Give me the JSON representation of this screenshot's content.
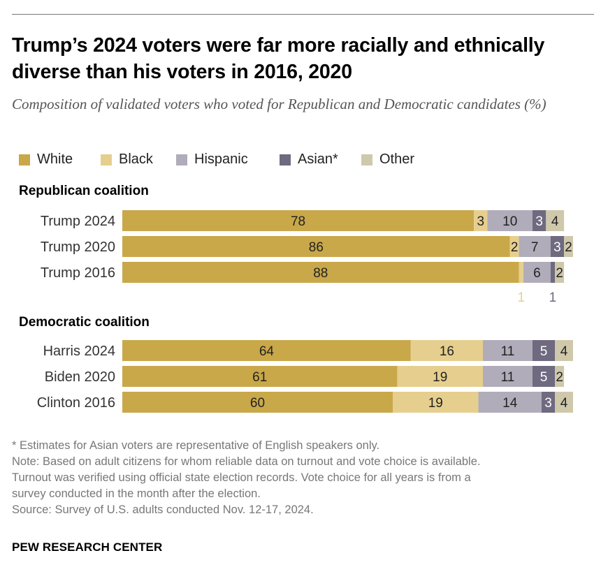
{
  "title": "Trump’s 2024 voters were far more racially and ethnically diverse than his voters in 2016, 2020",
  "subtitle": "Composition of validated voters who voted for Republican and Democratic candidates (%)",
  "colors": {
    "White": "#C9A84A",
    "Black": "#E6CF8E",
    "Hispanic": "#B0ACBA",
    "Asian*": "#6F6A80",
    "Other": "#CFC8AB"
  },
  "legend": [
    "White",
    "Black",
    "Hispanic",
    "Asian*",
    "Other"
  ],
  "chart_data": {
    "type": "bar",
    "orientation": "horizontal",
    "stacked": true,
    "unit": "%",
    "categories_stack": [
      "White",
      "Black",
      "Hispanic",
      "Asian*",
      "Other"
    ],
    "groups": [
      {
        "name": "Republican coalition",
        "rows": [
          {
            "label": "Trump 2024",
            "values": [
              78,
              3,
              10,
              3,
              4
            ]
          },
          {
            "label": "Trump 2020",
            "values": [
              86,
              2,
              7,
              3,
              2
            ]
          },
          {
            "label": "Trump 2016",
            "values": [
              88,
              1,
              6,
              1,
              2
            ]
          }
        ]
      },
      {
        "name": "Democratic coalition",
        "rows": [
          {
            "label": "Harris 2024",
            "values": [
              64,
              16,
              11,
              5,
              4
            ]
          },
          {
            "label": "Biden 2020",
            "values": [
              61,
              19,
              11,
              5,
              2
            ]
          },
          {
            "label": "Clinton 2016",
            "values": [
              60,
              19,
              14,
              3,
              4
            ]
          }
        ]
      }
    ]
  },
  "footnotes": [
    "* Estimates for Asian voters are representative of English speakers only.",
    "Note: Based on adult citizens for whom reliable data on turnout and vote choice is available.",
    "Turnout was verified using official state election records. Vote choice for all years is from a",
    "survey conducted in the month after the election.",
    "Source: Survey of U.S. adults conducted Nov. 12-17, 2024."
  ],
  "brand": "PEW RESEARCH CENTER"
}
